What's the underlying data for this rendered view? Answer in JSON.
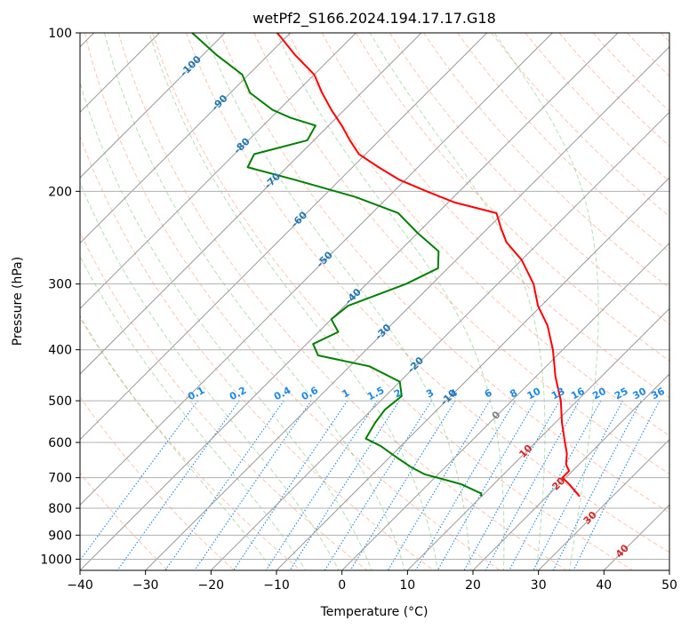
{
  "chart_data": {
    "type": "line",
    "title": "wetPf2_S166.2024.194.17.17.G18",
    "xlabel": "Temperature (°C)",
    "ylabel": "Pressure (hPa)",
    "xlim": [
      -40,
      50
    ],
    "ylim": [
      1050,
      100
    ],
    "y_scale": "log",
    "grid": true,
    "x_ticks": [
      -40,
      -30,
      -20,
      -10,
      0,
      10,
      20,
      30,
      40,
      50
    ],
    "y_ticks": [
      100,
      200,
      300,
      400,
      500,
      600,
      700,
      800,
      900,
      1000
    ],
    "skew_lines": [
      -120,
      -110,
      -100,
      -90,
      -80,
      -70,
      -60,
      -50,
      -40,
      -30,
      -20,
      -10,
      0,
      10,
      20,
      30,
      40,
      50
    ],
    "dry_adiabats_theta_C": [
      -30,
      -20,
      -10,
      0,
      10,
      20,
      30,
      40,
      50,
      60,
      70,
      80,
      90,
      100,
      110,
      120,
      130,
      140,
      150,
      160,
      170,
      180,
      190,
      200,
      210
    ],
    "moist_adiabats_T_C": [
      -10,
      -5,
      0,
      5,
      10,
      15,
      20,
      25,
      30,
      35
    ],
    "mixing_ratio_lines": [
      0.1,
      0.2,
      0.4,
      0.6,
      1,
      1.5,
      2,
      3,
      4,
      6,
      8,
      10,
      13,
      16,
      20,
      25,
      30,
      36
    ],
    "mixing_ratio_labels": [
      "0.1",
      "0.2",
      "0.4",
      "0.6",
      "1",
      "1.5",
      "2",
      "3",
      "4",
      "6",
      "8",
      "10",
      "13",
      "16",
      "20",
      "25",
      "30",
      "36"
    ],
    "isotherm_labels": [
      {
        "text": "-100",
        "t": -100,
        "p": 115,
        "color": "#1f77b4"
      },
      {
        "text": "-90",
        "t": -90,
        "p": 135,
        "color": "#1f77b4"
      },
      {
        "text": "-80",
        "t": -80,
        "p": 163,
        "color": "#1f77b4"
      },
      {
        "text": "-70",
        "t": -70,
        "p": 190,
        "color": "#1f77b4"
      },
      {
        "text": "-60",
        "t": -60,
        "p": 225,
        "color": "#1f77b4"
      },
      {
        "text": "-50",
        "t": -50,
        "p": 268,
        "color": "#1f77b4"
      },
      {
        "text": "-40",
        "t": -40,
        "p": 315,
        "color": "#1f77b4"
      },
      {
        "text": "-30",
        "t": -30,
        "p": 368,
        "color": "#1f77b4"
      },
      {
        "text": "-20",
        "t": -20,
        "p": 425,
        "color": "#1f77b4"
      },
      {
        "text": "-10",
        "t": -10,
        "p": 490,
        "color": "#1f77b4"
      },
      {
        "text": "0",
        "t": 0,
        "p": 530,
        "color": "#7f7f7f"
      },
      {
        "text": "10",
        "t": 10,
        "p": 620,
        "color": "#d62728"
      },
      {
        "text": "20",
        "t": 20,
        "p": 715,
        "color": "#d62728"
      },
      {
        "text": "30",
        "t": 30,
        "p": 830,
        "color": "#d62728"
      },
      {
        "text": "40",
        "t": 40,
        "p": 960,
        "color": "#d62728"
      }
    ],
    "series": [
      {
        "color": "#ff0000",
        "points": [
          [
            25.0,
            760
          ],
          [
            21.5,
            720
          ],
          [
            19.5,
            700
          ],
          [
            19.5,
            680
          ],
          [
            18.0,
            660
          ],
          [
            16.5,
            630
          ],
          [
            14.5,
            600
          ],
          [
            11.0,
            550
          ],
          [
            7.5,
            500
          ],
          [
            3.0,
            450
          ],
          [
            -1.5,
            400
          ],
          [
            -6.0,
            360
          ],
          [
            -10.5,
            330
          ],
          [
            -14.5,
            300
          ],
          [
            -20.0,
            270
          ],
          [
            -25.0,
            250
          ],
          [
            -28.0,
            235
          ],
          [
            -31.0,
            220
          ],
          [
            -39.0,
            210
          ],
          [
            -45.0,
            200
          ],
          [
            -51.0,
            190
          ],
          [
            -56.0,
            180
          ],
          [
            -61.0,
            170
          ],
          [
            -64.5,
            160
          ],
          [
            -68.0,
            150
          ],
          [
            -72.0,
            140
          ],
          [
            -76.0,
            130
          ],
          [
            -80.0,
            120
          ],
          [
            -86.0,
            110
          ],
          [
            -92.0,
            100
          ]
        ]
      },
      {
        "color": "#008000",
        "points": [
          [
            10.0,
            760
          ],
          [
            9.5,
            750
          ],
          [
            5.0,
            720
          ],
          [
            -2.0,
            690
          ],
          [
            -5.0,
            670
          ],
          [
            -9.0,
            640
          ],
          [
            -13.0,
            610
          ],
          [
            -16.5,
            590
          ],
          [
            -17.0,
            570
          ],
          [
            -17.5,
            550
          ],
          [
            -18.0,
            520
          ],
          [
            -17.5,
            490
          ],
          [
            -20.0,
            460
          ],
          [
            -27.0,
            430
          ],
          [
            -36.5,
            410
          ],
          [
            -39.0,
            390
          ],
          [
            -37.0,
            370
          ],
          [
            -40.0,
            350
          ],
          [
            -39.5,
            330
          ],
          [
            -34.0,
            300
          ],
          [
            -31.5,
            280
          ],
          [
            -34.0,
            260
          ],
          [
            -40.0,
            240
          ],
          [
            -46.0,
            220
          ],
          [
            -55.0,
            205
          ],
          [
            -67.0,
            190
          ],
          [
            -76.0,
            180
          ],
          [
            -77.0,
            170
          ],
          [
            -71.0,
            160
          ],
          [
            -72.0,
            150
          ],
          [
            -77.0,
            145
          ],
          [
            -81.0,
            140
          ],
          [
            -87.0,
            130
          ],
          [
            -91.0,
            120
          ],
          [
            -98.0,
            110
          ],
          [
            -105.0,
            100
          ]
        ]
      }
    ]
  }
}
